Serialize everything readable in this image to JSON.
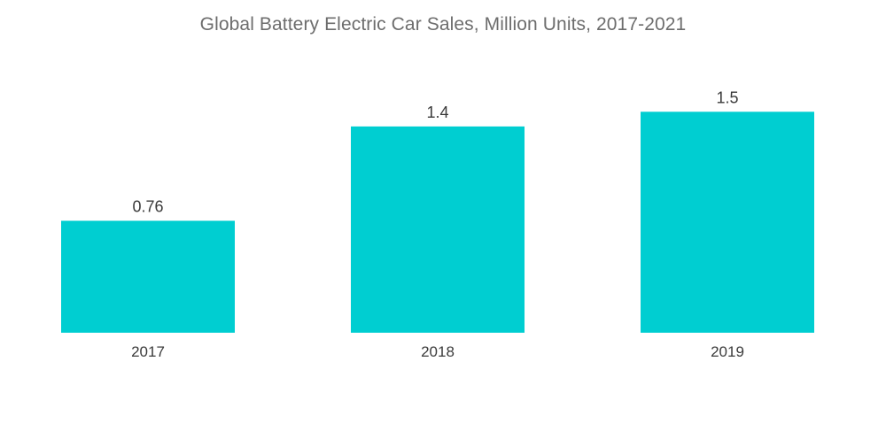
{
  "chart_data": {
    "type": "bar",
    "title": "Global Battery Electric Car Sales, Million Units, 2017-2021",
    "categories": [
      "2017",
      "2018",
      "2019"
    ],
    "values": [
      0.76,
      1.4,
      1.5
    ],
    "value_labels": [
      "0.76",
      "1.4",
      "1.5"
    ],
    "xlabel": "",
    "ylabel": "",
    "ylim": [
      0,
      1.73
    ],
    "grid": false,
    "legend": "none",
    "bar_color": "#00ced1"
  }
}
